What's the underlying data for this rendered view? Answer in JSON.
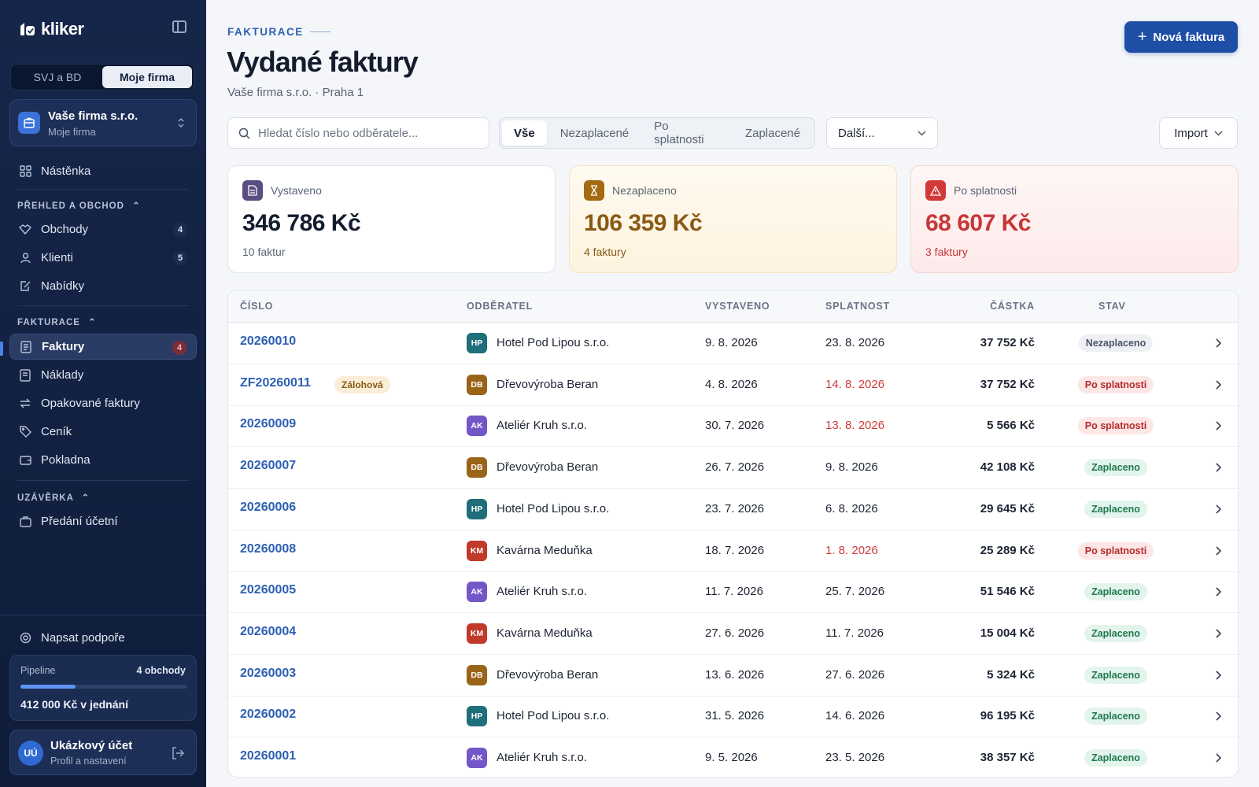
{
  "app": {
    "name": "kliker"
  },
  "switcher": {
    "options": [
      "SVJ a BD",
      "Moje firma"
    ],
    "active": "Moje firma"
  },
  "company": {
    "name": "Vaše firma s.r.o.",
    "subtitle": "Moje firma"
  },
  "sidebar": {
    "dashboard": "Nástěnka",
    "section_overview": "PŘEHLED A OBCHOD",
    "deals": {
      "label": "Obchody",
      "count": "4"
    },
    "clients": {
      "label": "Klienti",
      "count": "5"
    },
    "offers": "Nabídky",
    "section_invoicing": "FAKTURACE",
    "invoices": {
      "label": "Faktury",
      "count": "4"
    },
    "costs": "Náklady",
    "recurring": "Opakované faktury",
    "pricelist": "Ceník",
    "cashdesk": "Pokladna",
    "section_closing": "UZÁVĚRKA",
    "handover": "Předání účetní",
    "support": "Napsat podpoře"
  },
  "pipeline": {
    "label": "Pipeline",
    "count": "4 obchody",
    "value": "412 000 Kč v jednání",
    "progress": 0.33
  },
  "account": {
    "initials": "UÚ",
    "name": "Ukázkový účet",
    "subtitle": "Profil a nastavení"
  },
  "header": {
    "eyebrow": "FAKTURACE",
    "title": "Vydané faktury",
    "subtitle": "Vaše firma s.r.o. · Praha 1",
    "new_button": "Nová faktura"
  },
  "toolbar": {
    "search_placeholder": "Hledat číslo nebo odběratele...",
    "tabs": [
      "Vše",
      "Nezaplacené",
      "Po splatnosti",
      "Zaplacené"
    ],
    "active_tab": "Vše",
    "more": "Další...",
    "import": "Import"
  },
  "stats": [
    {
      "label": "Vystaveno",
      "value": "346 786 Kč",
      "sub": "10 faktur"
    },
    {
      "label": "Nezaplaceno",
      "value": "106 359 Kč",
      "sub": "4 faktury"
    },
    {
      "label": "Po splatnosti",
      "value": "68 607 Kč",
      "sub": "3 faktury"
    }
  ],
  "table": {
    "columns": [
      "ČÍSLO",
      "ODBĚRATEL",
      "VYSTAVENO",
      "SPLATNOST",
      "ČÁSTKA",
      "STAV"
    ],
    "rows": [
      {
        "number": "20260010",
        "tag": "",
        "initials": "HP",
        "client": "Hotel Pod Lipou s.r.o.",
        "issued": "9. 8. 2026",
        "due": "23. 8. 2026",
        "amount": "37 752 Kč",
        "status": "Nezaplaceno",
        "kind": "unpaid"
      },
      {
        "number": "ZF20260011",
        "tag": "Zálohová",
        "initials": "DB",
        "client": "Dřevovýroba Beran",
        "issued": "4. 8. 2026",
        "due": "14. 8. 2026",
        "amount": "37 752 Kč",
        "status": "Po splatnosti",
        "kind": "overdue"
      },
      {
        "number": "20260009",
        "tag": "",
        "initials": "AK",
        "client": "Ateliér Kruh s.r.o.",
        "issued": "30. 7. 2026",
        "due": "13. 8. 2026",
        "amount": "5 566 Kč",
        "status": "Po splatnosti",
        "kind": "overdue"
      },
      {
        "number": "20260007",
        "tag": "",
        "initials": "DB",
        "client": "Dřevovýroba Beran",
        "issued": "26. 7. 2026",
        "due": "9. 8. 2026",
        "amount": "42 108 Kč",
        "status": "Zaplaceno",
        "kind": "paid"
      },
      {
        "number": "20260006",
        "tag": "",
        "initials": "HP",
        "client": "Hotel Pod Lipou s.r.o.",
        "issued": "23. 7. 2026",
        "due": "6. 8. 2026",
        "amount": "29 645 Kč",
        "status": "Zaplaceno",
        "kind": "paid"
      },
      {
        "number": "20260008",
        "tag": "",
        "initials": "KM",
        "client": "Kavárna Meduňka",
        "issued": "18. 7. 2026",
        "due": "1. 8. 2026",
        "amount": "25 289 Kč",
        "status": "Po splatnosti",
        "kind": "overdue"
      },
      {
        "number": "20260005",
        "tag": "",
        "initials": "AK",
        "client": "Ateliér Kruh s.r.o.",
        "issued": "11. 7. 2026",
        "due": "25. 7. 2026",
        "amount": "51 546 Kč",
        "status": "Zaplaceno",
        "kind": "paid"
      },
      {
        "number": "20260004",
        "tag": "",
        "initials": "KM",
        "client": "Kavárna Meduňka",
        "issued": "27. 6. 2026",
        "due": "11. 7. 2026",
        "amount": "15 004 Kč",
        "status": "Zaplaceno",
        "kind": "paid"
      },
      {
        "number": "20260003",
        "tag": "",
        "initials": "DB",
        "client": "Dřevovýroba Beran",
        "issued": "13. 6. 2026",
        "due": "27. 6. 2026",
        "amount": "5 324 Kč",
        "status": "Zaplaceno",
        "kind": "paid"
      },
      {
        "number": "20260002",
        "tag": "",
        "initials": "HP",
        "client": "Hotel Pod Lipou s.r.o.",
        "issued": "31. 5. 2026",
        "due": "14. 6. 2026",
        "amount": "96 195 Kč",
        "status": "Zaplaceno",
        "kind": "paid"
      },
      {
        "number": "20260001",
        "tag": "",
        "initials": "AK",
        "client": "Ateliér Kruh s.r.o.",
        "issued": "9. 5. 2026",
        "due": "23. 5. 2026",
        "amount": "38 357 Kč",
        "status": "Zaplaceno",
        "kind": "paid"
      }
    ]
  },
  "colors": {
    "HP": "#1f6f7a",
    "DB": "#9a6418",
    "AK": "#7356c8",
    "KM": "#c0392b"
  }
}
